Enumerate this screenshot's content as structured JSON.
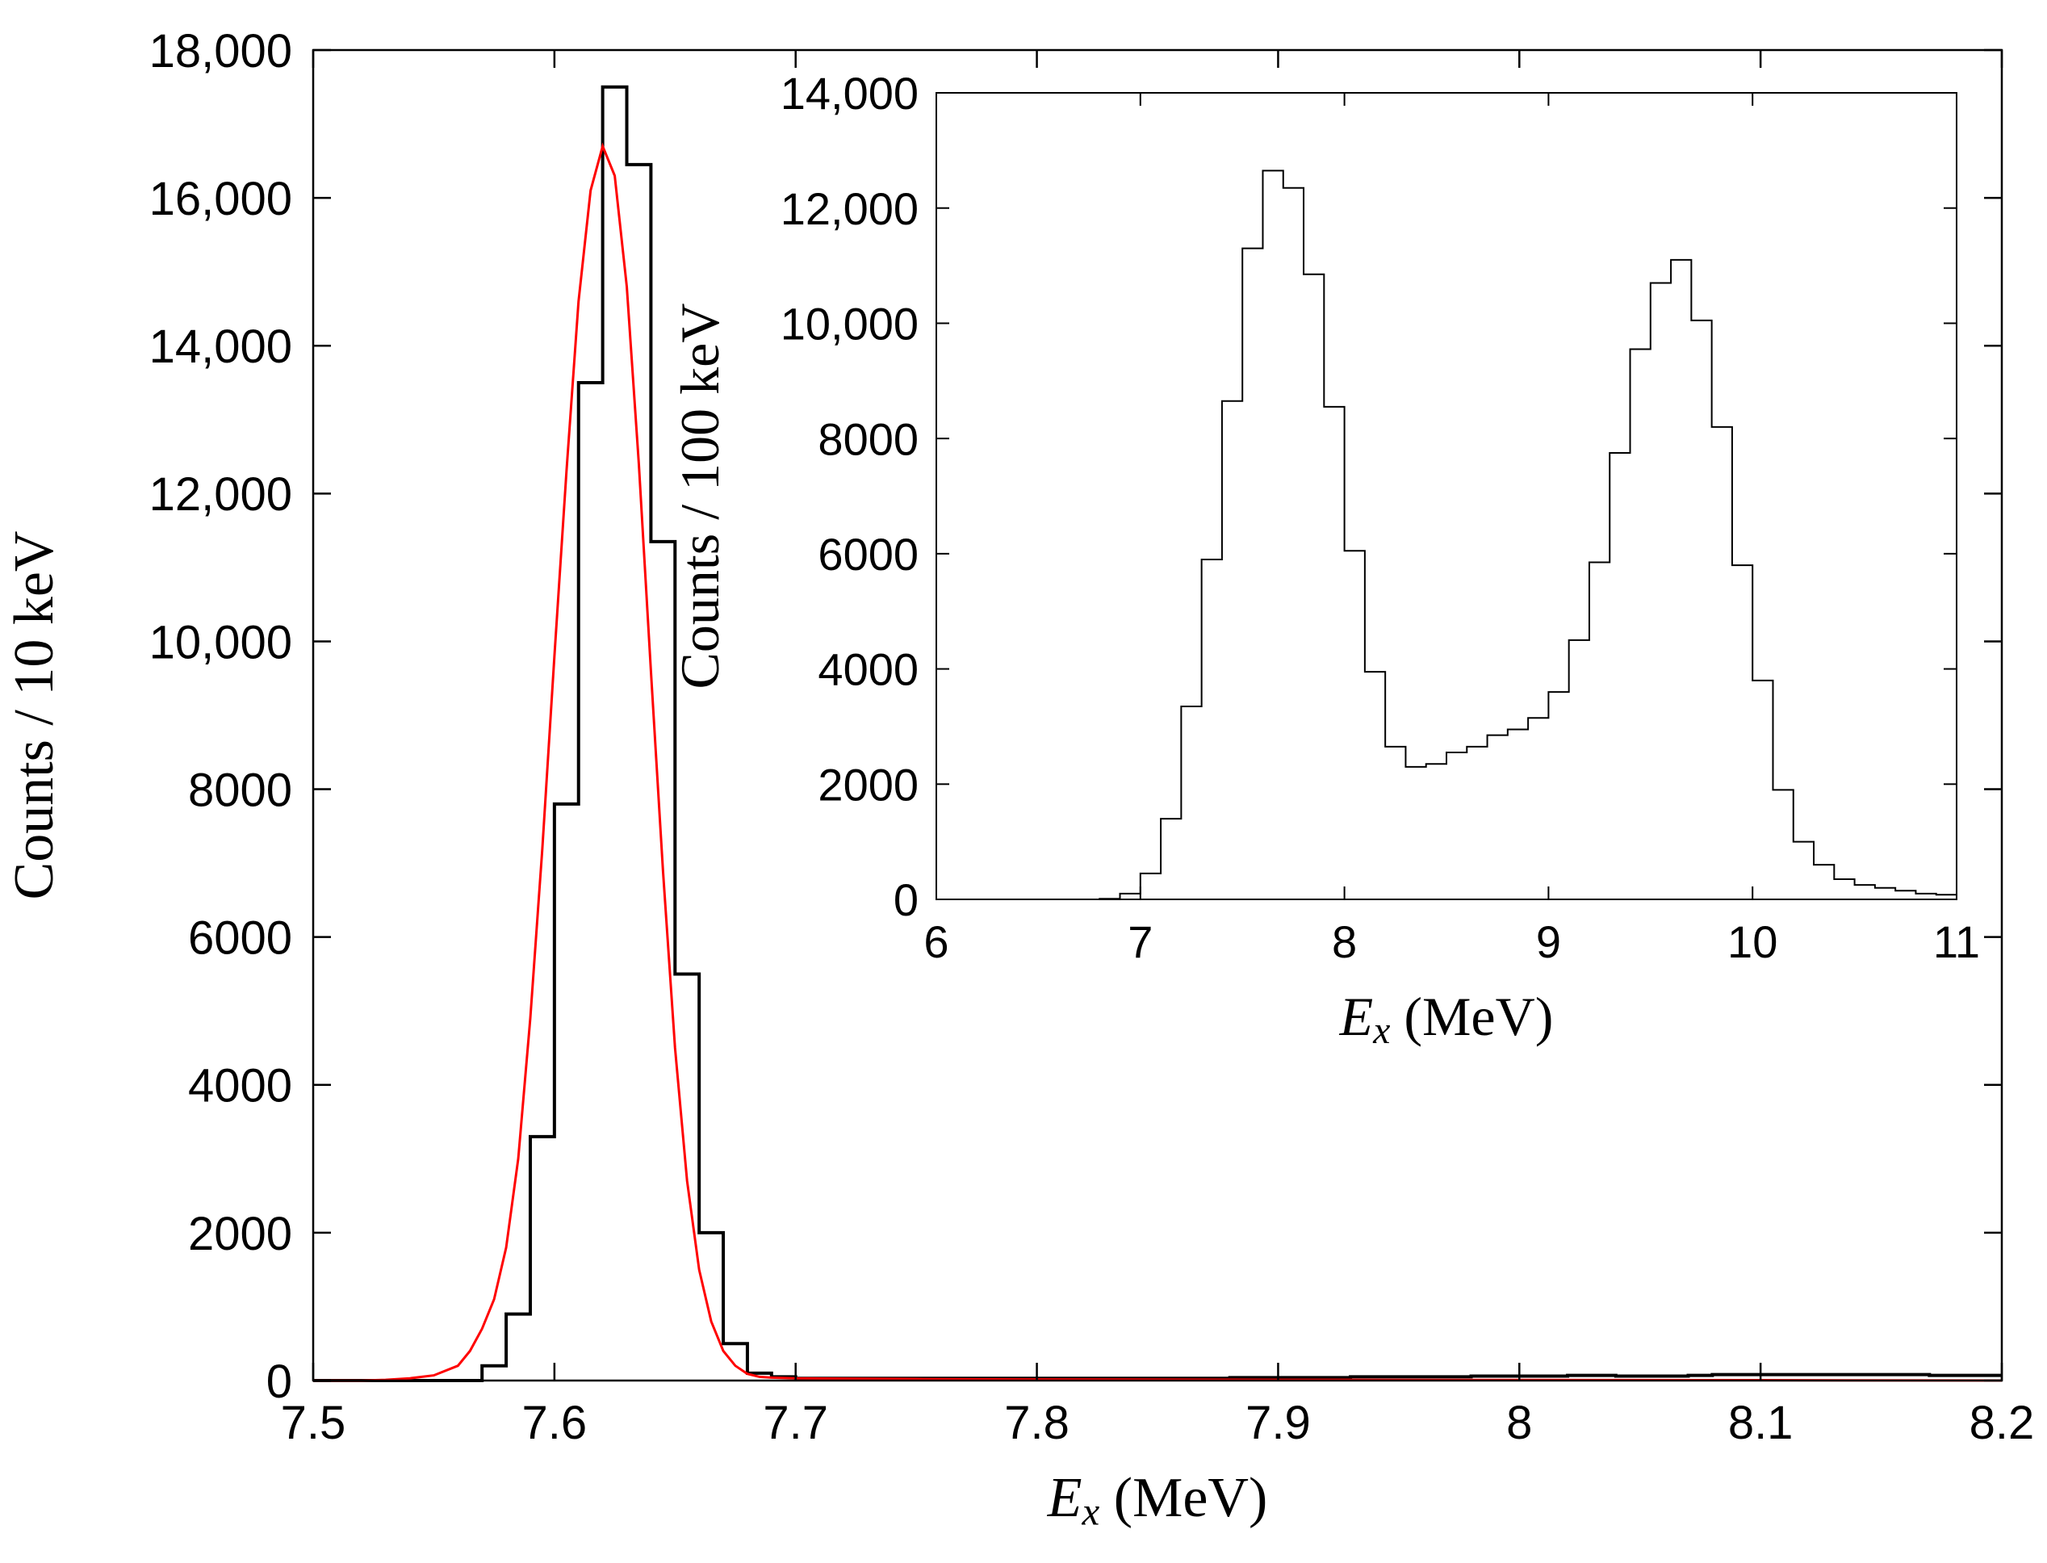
{
  "chart_data": [
    {
      "type": "histogram",
      "name": "main",
      "xlabel": "E",
      "xlabel_subscript": "x",
      "xlabel_units": "(MeV)",
      "ylabel": "Counts  /  10 keV",
      "xlim": [
        7.5,
        8.2
      ],
      "ylim": [
        0,
        18000
      ],
      "xticks": [
        7.5,
        7.6,
        7.7,
        7.8,
        7.9,
        8,
        8.1,
        8.2
      ],
      "xtick_labels": [
        "7.5",
        "7.6",
        "7.7",
        "7.8",
        "7.9",
        "8",
        "8.1",
        "8.2"
      ],
      "yticks": [
        0,
        2000,
        4000,
        6000,
        8000,
        10000,
        12000,
        14000,
        16000,
        18000
      ],
      "ytick_labels": [
        "0",
        "2000",
        "4000",
        "6000",
        "8000",
        "10,000",
        "12,000",
        "14,000",
        "16,000",
        "18,000"
      ],
      "bin_width": 0.01,
      "series": [
        {
          "name": "data",
          "color": "#000000",
          "bin_edges_start": 7.5,
          "counts": [
            0,
            0,
            0,
            0,
            0,
            0,
            0,
            200,
            900,
            3300,
            7800,
            13500,
            17500,
            16450,
            11350,
            5500,
            2000,
            500,
            100,
            50,
            30,
            30,
            30,
            30,
            30,
            30,
            30,
            30,
            30,
            30,
            30,
            30,
            30,
            30,
            30,
            30,
            30,
            30,
            40,
            40,
            40,
            40,
            40,
            50,
            50,
            50,
            50,
            50,
            60,
            60,
            60,
            60,
            70,
            70,
            60,
            60,
            60,
            70,
            80,
            80,
            80,
            80,
            80,
            80,
            80,
            80,
            80,
            70,
            70,
            70,
            70,
            70,
            80,
            100,
            100
          ]
        },
        {
          "name": "fit",
          "color": "#ff0000",
          "x": [
            7.5,
            7.51,
            7.52,
            7.53,
            7.54,
            7.55,
            7.56,
            7.565,
            7.57,
            7.575,
            7.58,
            7.585,
            7.59,
            7.595,
            7.6,
            7.605,
            7.61,
            7.615,
            7.62,
            7.625,
            7.63,
            7.635,
            7.64,
            7.645,
            7.65,
            7.655,
            7.66,
            7.665,
            7.67,
            7.675,
            7.68,
            7.685,
            7.69,
            7.7,
            7.75,
            7.8,
            7.9,
            8.0,
            8.1,
            8.2
          ],
          "y": [
            0,
            0,
            0,
            10,
            30,
            70,
            200,
            400,
            700,
            1100,
            1800,
            3000,
            4900,
            7200,
            9800,
            12300,
            14600,
            16100,
            16700,
            16300,
            14800,
            12400,
            9600,
            6900,
            4500,
            2700,
            1500,
            800,
            400,
            200,
            90,
            50,
            40,
            30,
            20,
            15,
            10,
            8,
            5,
            0
          ]
        }
      ]
    },
    {
      "type": "histogram",
      "name": "inset",
      "xlabel": "E",
      "xlabel_subscript": "x",
      "xlabel_units": "(MeV)",
      "ylabel": "Counts  /  100 keV",
      "xlim": [
        6,
        11
      ],
      "ylim": [
        0,
        14000
      ],
      "xticks": [
        6,
        7,
        8,
        9,
        10,
        11
      ],
      "xtick_labels": [
        "6",
        "7",
        "8",
        "9",
        "10",
        "11"
      ],
      "yticks": [
        0,
        2000,
        4000,
        6000,
        8000,
        10000,
        12000,
        14000
      ],
      "ytick_labels": [
        "0",
        "2000",
        "4000",
        "6000",
        "8000",
        "10,000",
        "12,000",
        "14,000"
      ],
      "bin_width": 0.1,
      "series": [
        {
          "name": "data",
          "color": "#000000",
          "bin_edges_start": 6.0,
          "counts": [
            0,
            0,
            0,
            0,
            0,
            0,
            0,
            0,
            10,
            100,
            450,
            1400,
            3350,
            5900,
            8650,
            11300,
            12650,
            12350,
            10850,
            8550,
            6050,
            3950,
            2650,
            2300,
            2350,
            2550,
            2650,
            2850,
            2950,
            3150,
            3600,
            4500,
            5850,
            7750,
            9550,
            10700,
            11100,
            10050,
            8200,
            5800,
            3800,
            1900,
            1000,
            600,
            350,
            250,
            200,
            150,
            100,
            80
          ]
        }
      ]
    }
  ]
}
